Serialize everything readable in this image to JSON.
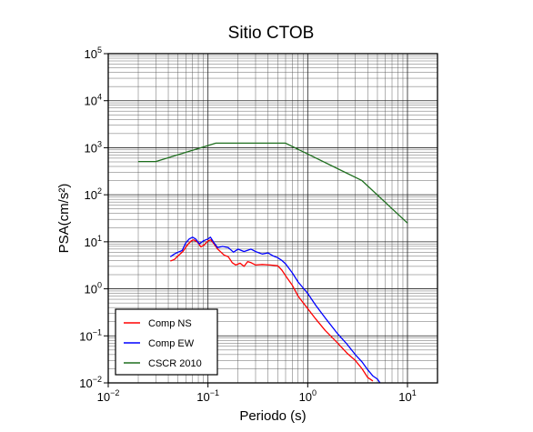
{
  "chart_data": {
    "type": "line",
    "title": "Sitio CTOB",
    "xlabel": "Periodo (s)",
    "ylabel": "PSA(cm/s²)",
    "x_scale": "log",
    "y_scale": "log",
    "xlim": [
      0.01,
      20
    ],
    "ylim": [
      0.01,
      100000
    ],
    "grid": true,
    "legend_position": "bottom-left",
    "x_ticks": [
      {
        "value": 0.01,
        "base": "10",
        "exp": "−2"
      },
      {
        "value": 0.1,
        "base": "10",
        "exp": "−1"
      },
      {
        "value": 1,
        "base": "10",
        "exp": "0"
      },
      {
        "value": 10,
        "base": "10",
        "exp": "1"
      }
    ],
    "y_ticks": [
      {
        "value": 0.01,
        "base": "10",
        "exp": "−2"
      },
      {
        "value": 0.1,
        "base": "10",
        "exp": "−1"
      },
      {
        "value": 1,
        "base": "10",
        "exp": "0"
      },
      {
        "value": 10,
        "base": "10",
        "exp": "1"
      },
      {
        "value": 100,
        "base": "10",
        "exp": "2"
      },
      {
        "value": 1000,
        "base": "10",
        "exp": "3"
      },
      {
        "value": 10000,
        "base": "10",
        "exp": "4"
      },
      {
        "value": 100000,
        "base": "10",
        "exp": "5"
      }
    ],
    "series": [
      {
        "name": "Comp NS",
        "color": "#ff0000",
        "points": [
          [
            0.042,
            3.9
          ],
          [
            0.046,
            4.2
          ],
          [
            0.05,
            5.0
          ],
          [
            0.056,
            6.2
          ],
          [
            0.062,
            8.5
          ],
          [
            0.068,
            10.5
          ],
          [
            0.072,
            11.0
          ],
          [
            0.078,
            10.0
          ],
          [
            0.085,
            7.8
          ],
          [
            0.092,
            8.6
          ],
          [
            0.1,
            10.5
          ],
          [
            0.107,
            11.0
          ],
          [
            0.115,
            9.0
          ],
          [
            0.125,
            7.0
          ],
          [
            0.135,
            6.0
          ],
          [
            0.145,
            5.2
          ],
          [
            0.16,
            4.8
          ],
          [
            0.175,
            3.6
          ],
          [
            0.19,
            3.2
          ],
          [
            0.21,
            3.5
          ],
          [
            0.23,
            3.0
          ],
          [
            0.25,
            3.8
          ],
          [
            0.27,
            3.6
          ],
          [
            0.3,
            3.2
          ],
          [
            0.35,
            3.3
          ],
          [
            0.42,
            3.2
          ],
          [
            0.5,
            3.1
          ],
          [
            0.55,
            2.5
          ],
          [
            0.6,
            1.9
          ],
          [
            0.7,
            1.2
          ],
          [
            0.8,
            0.7
          ],
          [
            1.0,
            0.38
          ],
          [
            1.2,
            0.23
          ],
          [
            1.5,
            0.13
          ],
          [
            2.0,
            0.07
          ],
          [
            2.5,
            0.042
          ],
          [
            3.0,
            0.03
          ],
          [
            3.5,
            0.02
          ],
          [
            4.0,
            0.013
          ],
          [
            4.5,
            0.011
          ]
        ]
      },
      {
        "name": "Comp EW",
        "color": "#0000ff",
        "points": [
          [
            0.042,
            4.8
          ],
          [
            0.046,
            5.5
          ],
          [
            0.05,
            6.0
          ],
          [
            0.055,
            6.5
          ],
          [
            0.06,
            9.5
          ],
          [
            0.065,
            11.5
          ],
          [
            0.07,
            12.5
          ],
          [
            0.075,
            11.5
          ],
          [
            0.082,
            9.0
          ],
          [
            0.09,
            10.5
          ],
          [
            0.1,
            11.5
          ],
          [
            0.106,
            12.5
          ],
          [
            0.115,
            9.5
          ],
          [
            0.125,
            7.5
          ],
          [
            0.14,
            8.0
          ],
          [
            0.16,
            7.5
          ],
          [
            0.18,
            6.0
          ],
          [
            0.2,
            7.0
          ],
          [
            0.23,
            6.2
          ],
          [
            0.27,
            7.0
          ],
          [
            0.3,
            6.2
          ],
          [
            0.35,
            5.5
          ],
          [
            0.4,
            5.8
          ],
          [
            0.45,
            5.0
          ],
          [
            0.5,
            4.6
          ],
          [
            0.55,
            4.0
          ],
          [
            0.6,
            3.4
          ],
          [
            0.7,
            2.2
          ],
          [
            0.8,
            1.4
          ],
          [
            1.0,
            0.8
          ],
          [
            1.2,
            0.45
          ],
          [
            1.5,
            0.24
          ],
          [
            2.0,
            0.11
          ],
          [
            2.5,
            0.065
          ],
          [
            3.0,
            0.04
          ],
          [
            3.5,
            0.028
          ],
          [
            4.0,
            0.019
          ],
          [
            4.5,
            0.014
          ],
          [
            5.0,
            0.012
          ],
          [
            5.3,
            0.01
          ]
        ]
      },
      {
        "name": "CSCR 2010",
        "color": "#1f6f1f",
        "points": [
          [
            0.02,
            510
          ],
          [
            0.03,
            510
          ],
          [
            0.12,
            1250
          ],
          [
            0.6,
            1250
          ],
          [
            3.5,
            200
          ],
          [
            10,
            25
          ]
        ]
      }
    ]
  }
}
